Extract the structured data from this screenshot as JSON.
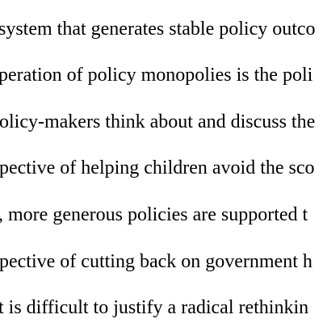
{
  "document": {
    "lines": [
      "system that generates stable policy outco",
      "peration of policy monopolies is the poli",
      "olicy-makers think about and discuss the",
      "pective of helping children avoid the sco",
      ", more generous policies are supported t",
      "pective of cutting back on government h",
      "t is difficult to justify a radical rethinkin"
    ]
  }
}
